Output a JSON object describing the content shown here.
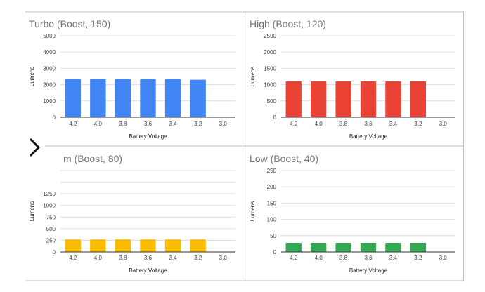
{
  "nav": {
    "icon": "chevron-right-icon"
  },
  "chart_data": [
    {
      "type": "bar",
      "title": "Turbo (Boost, 150)",
      "xlabel": "Battery Voltage",
      "ylabel": "Lumens",
      "categories": [
        "4.2",
        "4.0",
        "3.8",
        "3.6",
        "3.4",
        "3.2",
        "3.0"
      ],
      "values": [
        2350,
        2350,
        2350,
        2350,
        2350,
        2300,
        0
      ],
      "ylim": [
        0,
        5000
      ],
      "yticks": [
        0,
        1000,
        2000,
        3000,
        4000,
        5000
      ],
      "grid": true,
      "color": "#4285F4"
    },
    {
      "type": "bar",
      "title": "High (Boost, 120)",
      "xlabel": "Battery Voltage",
      "ylabel": "Lumens",
      "categories": [
        "4.2",
        "4.0",
        "3.8",
        "3.6",
        "3.4",
        "3.2",
        "3.0"
      ],
      "values": [
        1100,
        1100,
        1100,
        1100,
        1100,
        1100,
        0
      ],
      "ylim": [
        0,
        2500
      ],
      "yticks": [
        0,
        500,
        1000,
        1500,
        2000,
        2500
      ],
      "grid": true,
      "color": "#EA4335"
    },
    {
      "type": "bar",
      "title": "m (Boost, 80)",
      "xlabel": "Battery Voltage",
      "ylabel": "Lumens",
      "categories": [
        "4.2",
        "4.0",
        "3.8",
        "3.6",
        "3.4",
        "3.2",
        "3.0"
      ],
      "values": [
        270,
        270,
        270,
        270,
        270,
        270,
        0
      ],
      "ylim": [
        0,
        1750
      ],
      "yticks": [
        0,
        250,
        500,
        750,
        1000,
        1250,
        1500,
        1750
      ],
      "yticks_visible": [
        0,
        250,
        500,
        750,
        1000,
        1250
      ],
      "grid": true,
      "color": "#FBBC04"
    },
    {
      "type": "bar",
      "title": "Low (Boost, 40)",
      "xlabel": "Battery Voltage",
      "ylabel": "Lumens",
      "categories": [
        "4.2",
        "4.0",
        "3.8",
        "3.6",
        "3.4",
        "3.2",
        "3.0"
      ],
      "values": [
        28,
        28,
        28,
        28,
        28,
        28,
        0
      ],
      "ylim": [
        0,
        250
      ],
      "yticks": [
        0,
        50,
        100,
        150,
        200,
        250
      ],
      "grid": true,
      "color": "#34A853"
    }
  ]
}
